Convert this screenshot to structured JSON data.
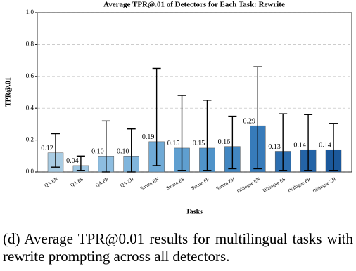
{
  "chart_data": {
    "type": "bar",
    "title": "Average TPR@.01 of Detectors for Each Task: Rewrite",
    "xlabel": "Tasks",
    "ylabel": "TPR@.01",
    "categories": [
      "QA EN",
      "QA ES",
      "QA FR",
      "QA ZH",
      "Summ EN",
      "Summ ES",
      "Summ FR",
      "Summ ZH",
      "Dialogue EN",
      "Dialogue ES",
      "Dialogue FR",
      "Dialogue ZH"
    ],
    "values": [
      0.12,
      0.04,
      0.1,
      0.1,
      0.19,
      0.15,
      0.15,
      0.16,
      0.29,
      0.13,
      0.14,
      0.14
    ],
    "value_labels": [
      "0.12",
      "0.04",
      "0.10",
      "0.10",
      "0.19",
      "0.15",
      "0.15",
      "0.16",
      "0.29",
      "0.13",
      "0.14",
      "0.14"
    ],
    "error_lower": [
      0.03,
      0.01,
      0.0,
      0.0,
      0.04,
      0.01,
      0.01,
      0.02,
      0.02,
      0.01,
      0.01,
      0.01
    ],
    "error_upper": [
      0.24,
      0.1,
      0.32,
      0.27,
      0.65,
      0.48,
      0.45,
      0.35,
      0.66,
      0.365,
      0.36,
      0.305
    ],
    "colors": [
      "#a9cce3",
      "#9ec6e2",
      "#8dbde0",
      "#80b5dc",
      "#6faad6",
      "#5f9fd0",
      "#4f93c9",
      "#4287c2",
      "#377bba",
      "#2c6eb0",
      "#2463a6",
      "#1b589b"
    ],
    "ylim": [
      0,
      1.0
    ],
    "yticks": [
      {
        "value": 0,
        "label": "0.0"
      },
      {
        "value": 0.2,
        "label": "0.2"
      },
      {
        "value": 0.4,
        "label": "0.4"
      },
      {
        "value": 0.6,
        "label": "0.6"
      },
      {
        "value": 0.8,
        "label": "0.8"
      },
      {
        "value": 1.0,
        "label": "1.0"
      }
    ],
    "grid": true
  },
  "caption": "(d) Average TPR@0.01 results for multilingual tasks with rewrite prompting across all detectors."
}
